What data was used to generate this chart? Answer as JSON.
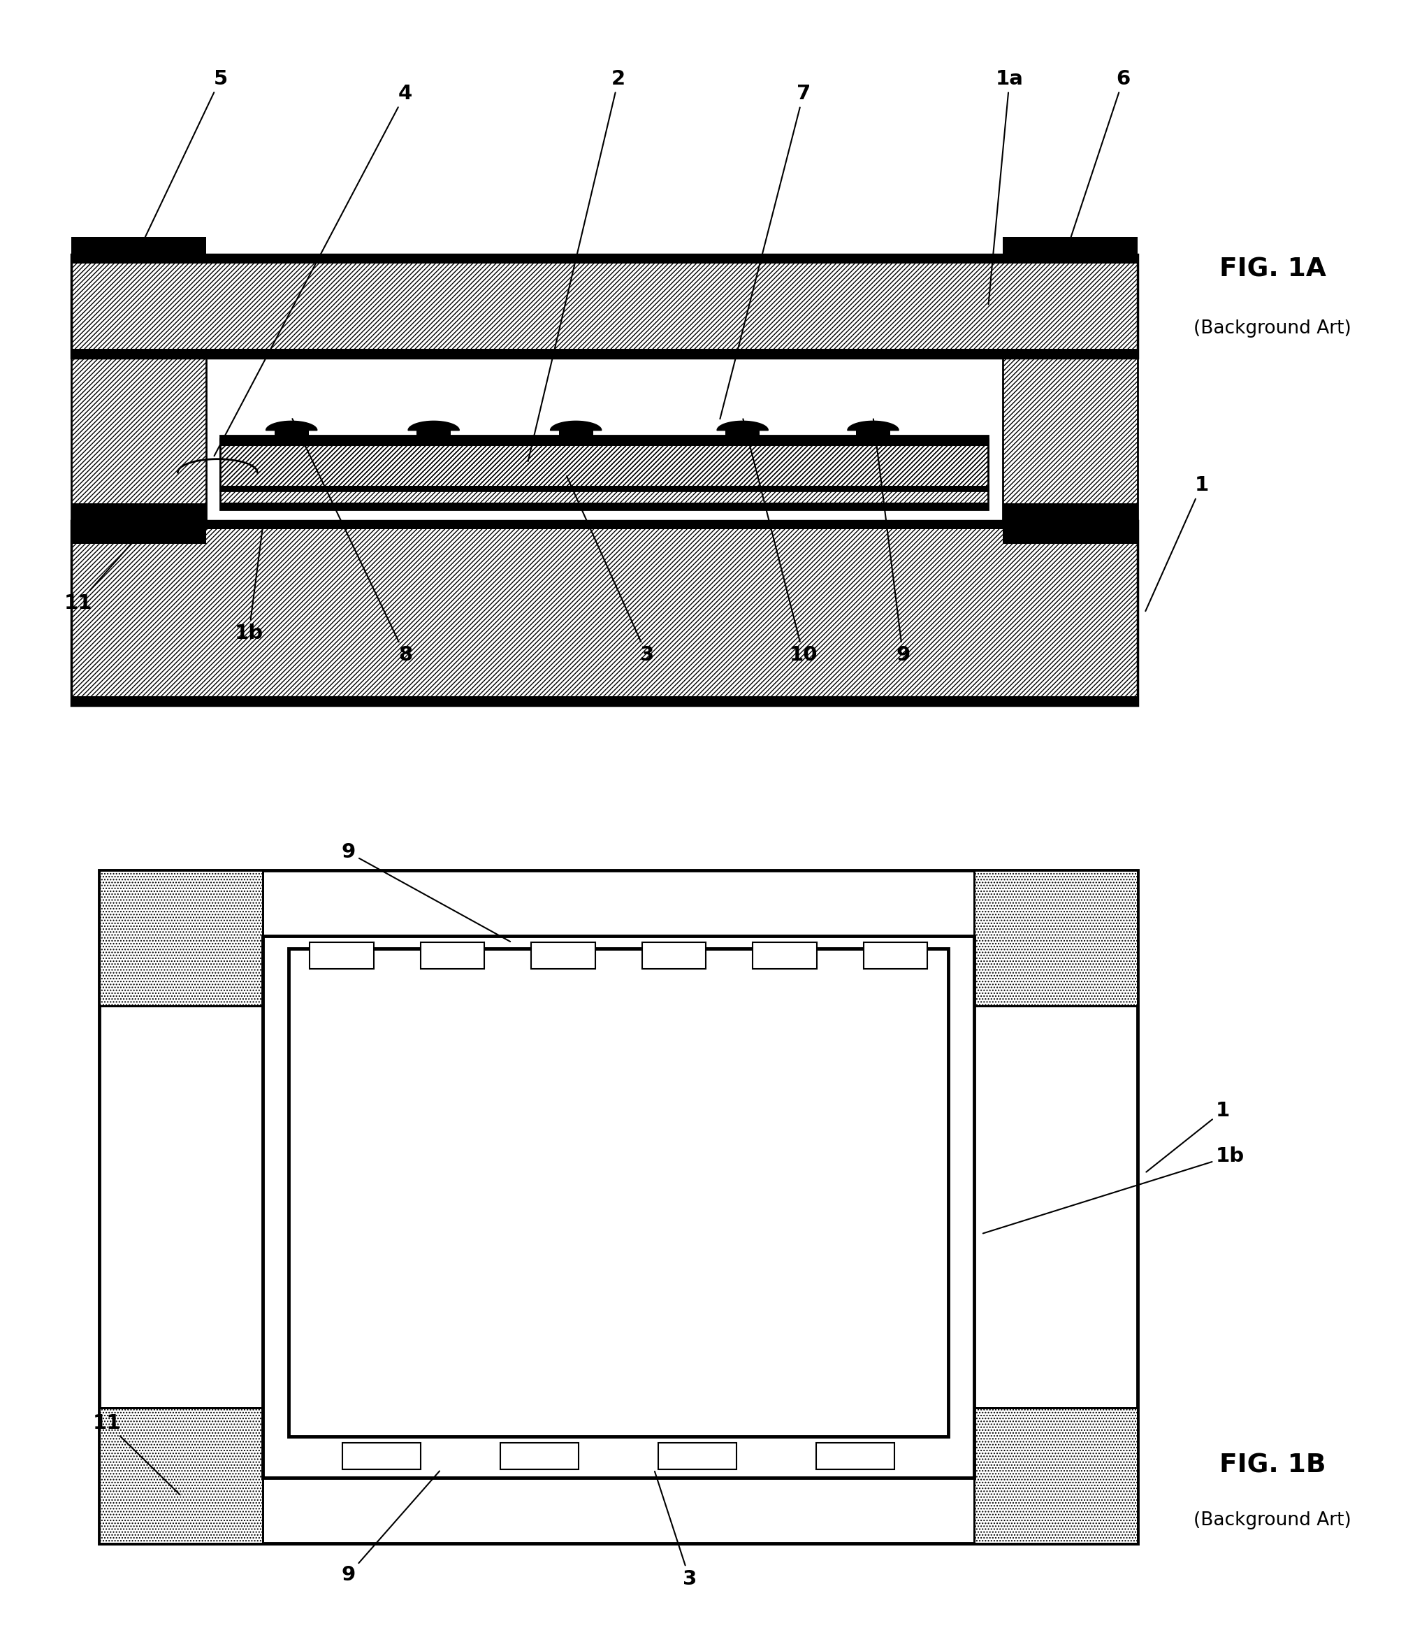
{
  "bg_color": "#ffffff",
  "fig1a_title": "FIG. 1A",
  "fig1a_sub": "(Background Art)",
  "fig1b_title": "FIG. 1B",
  "fig1b_sub": "(Background Art)"
}
